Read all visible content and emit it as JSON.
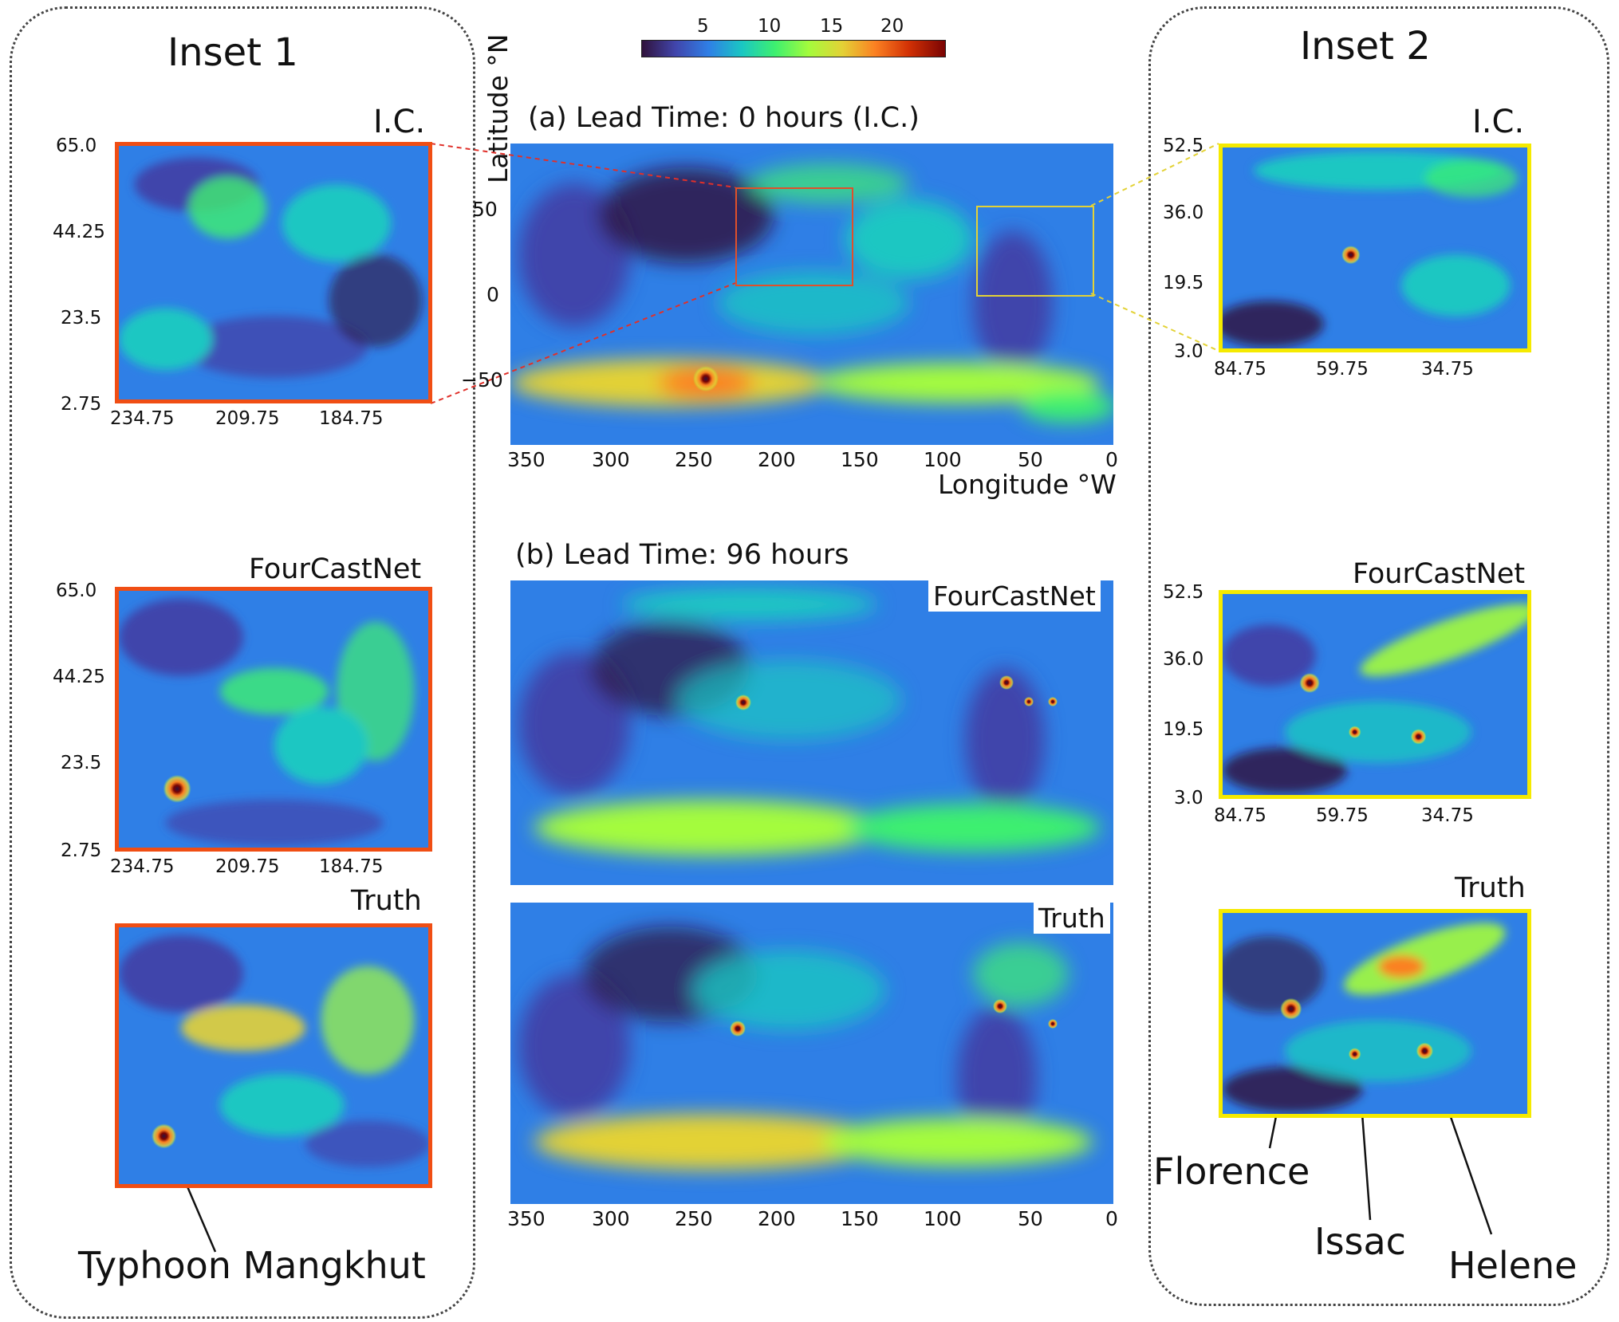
{
  "colorbar": {
    "ticks": [
      "5",
      "10",
      "15",
      "20"
    ],
    "colors": [
      "#30123b",
      "#4145ab",
      "#2f7fe6",
      "#1ac7c2",
      "#3ef06f",
      "#a4fc3c",
      "#e3d236",
      "#fb8022",
      "#d23105",
      "#7a0403"
    ]
  },
  "main": {
    "panel_a_title": "(a) Lead Time: 0 hours (I.C.)",
    "panel_b_title": "(b) Lead Time: 96 hours",
    "ylabel": "Latitude °N",
    "xlabel": "Longitude °W",
    "lat_ticks": [
      "50",
      "0",
      "−50"
    ],
    "lon_ticks": [
      "350",
      "300",
      "250",
      "200",
      "150",
      "100",
      "50",
      "0"
    ],
    "tag_fourcastnet": "FourCastNet",
    "tag_truth": "Truth"
  },
  "inset1": {
    "title": "Inset 1",
    "ic_label": "I.C.",
    "fcn_label": "FourCastNet",
    "truth_label": "Truth",
    "lat_ticks": [
      "65.0",
      "44.25",
      "23.5",
      "2.75"
    ],
    "lon_ticks": [
      "234.75",
      "209.75",
      "184.75"
    ],
    "storm": "Typhoon Mangkhut",
    "frame_color": "#f04e14"
  },
  "inset2": {
    "title": "Inset 2",
    "ic_label": "I.C.",
    "fcn_label": "FourCastNet",
    "truth_label": "Truth",
    "lat_ticks": [
      "52.5",
      "36.0",
      "19.5",
      "3.0"
    ],
    "lon_ticks": [
      "84.75",
      "59.75",
      "34.75"
    ],
    "storms": {
      "florence": "Florence",
      "issac": "Issac",
      "helene": "Helene"
    },
    "frame_color": "#f5ea00"
  }
}
